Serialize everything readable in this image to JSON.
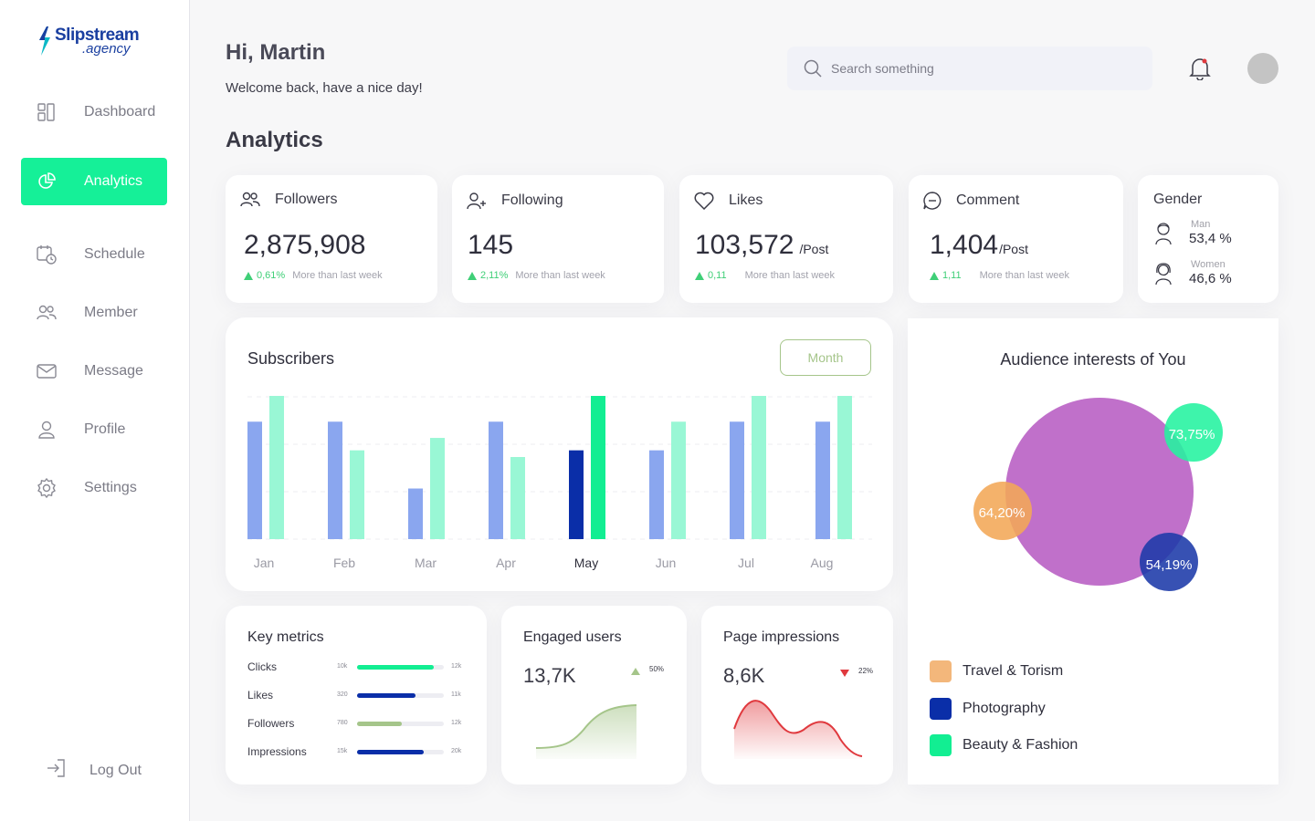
{
  "brand": {
    "name": "Slipstream",
    "sub": ".agency"
  },
  "nav": {
    "dashboard": "Dashboard",
    "analytics": "Analytics",
    "schedule": "Schedule",
    "member": "Member",
    "message": "Message",
    "profile": "Profile",
    "settings": "Settings",
    "logout": "Log Out"
  },
  "header": {
    "greeting": "Hi, Martin",
    "welcome": "Welcome back, have a nice day!",
    "search_placeholder": "Search something"
  },
  "section_title": "Analytics",
  "stats": [
    {
      "title": "Followers",
      "value": "2,875,908",
      "unit": "",
      "change": "0,61%",
      "note": "More than last week"
    },
    {
      "title": "Following",
      "value": "145",
      "unit": "",
      "change": "2,11%",
      "note": "More than last week"
    },
    {
      "title": "Likes",
      "value": "103,572",
      "unit": "/Post",
      "change": "0,11",
      "note": "More than last week"
    },
    {
      "title": "Comment",
      "value": "1,404",
      "unit": "/Post",
      "change": "1,11",
      "note": "More than last week"
    }
  ],
  "gender": {
    "title": "Gender",
    "man_label": "Man",
    "man_value": "53,4 %",
    "women_label": "Women",
    "women_value": "46,6 %"
  },
  "subscribers": {
    "title": "Subscribers",
    "period_button": "Month",
    "highlight_index": 4,
    "colors": {
      "primary": "#8aa6ef",
      "secondary": "#99f7d5",
      "primary_active": "#0a2ea8",
      "secondary_active": "#12ee92"
    }
  },
  "chart_data": {
    "type": "bar",
    "categories": [
      "Jan",
      "Feb",
      "Mar",
      "Apr",
      "May",
      "Jun",
      "Jul",
      "Aug"
    ],
    "series": [
      {
        "values": [
          123,
          123,
          53,
          123,
          93,
          93,
          123,
          123
        ]
      },
      {
        "values": [
          150,
          93,
          106,
          86,
          150,
          123,
          150,
          150
        ]
      }
    ],
    "ylim": [
      0,
      160
    ],
    "grid": true
  },
  "key_metrics": {
    "title": "Key metrics",
    "rows": [
      {
        "name": "Clicks",
        "min": "10k",
        "max": "12k",
        "fill": 0.88,
        "color": "#12ee92"
      },
      {
        "name": "Likes",
        "min": "320",
        "max": "11k",
        "fill": 0.67,
        "color": "#0a2ea8"
      },
      {
        "name": "Followers",
        "min": "780",
        "max": "12k",
        "fill": 0.52,
        "color": "#a5c58a"
      },
      {
        "name": "Impressions",
        "min": "15k",
        "max": "20k",
        "fill": 0.77,
        "color": "#0a2ea8"
      }
    ]
  },
  "engaged": {
    "title": "Engaged users",
    "value": "13,7K",
    "change": "50%",
    "color": "#a5c58a"
  },
  "impressions": {
    "title": "Page impressions",
    "value": "8,6K",
    "change": "22%",
    "color": "#e0393e"
  },
  "audience": {
    "title": "Audience interests of You",
    "bubbles": [
      {
        "label": "73,75%",
        "color": "#23f39f"
      },
      {
        "label": "64,20%",
        "color": "#f2a757"
      },
      {
        "label": "54,19%",
        "color": "#1b39a8"
      }
    ],
    "main_color": "#bb65c6",
    "legend": [
      {
        "label": "Travel & Torism",
        "color": "#f3b77b"
      },
      {
        "label": "Photography",
        "color": "#0a2ea8"
      },
      {
        "label": "Beauty & Fashion",
        "color": "#12ee92"
      }
    ]
  }
}
